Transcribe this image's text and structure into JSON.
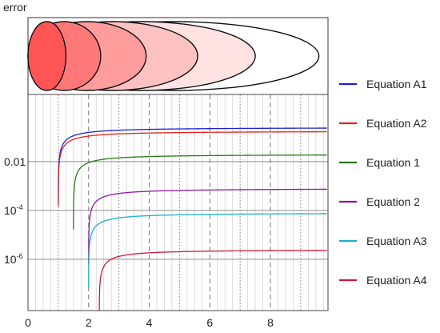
{
  "chart_data": {
    "type": "line",
    "top_panel_label": "error",
    "xlim": [
      0,
      9.9
    ],
    "ylim_log10": [
      -8.1,
      0.75
    ],
    "x_ticks": [
      {
        "value": 0,
        "label": "0"
      },
      {
        "value": 2,
        "label": "2"
      },
      {
        "value": 4,
        "label": "4"
      },
      {
        "value": 6,
        "label": "6"
      },
      {
        "value": 8,
        "label": "8"
      }
    ],
    "y_ticks": [
      {
        "log10": -2,
        "base": "0.01",
        "exp": ""
      },
      {
        "log10": -4,
        "base": "10",
        "exp": "-4"
      },
      {
        "log10": -6,
        "base": "10",
        "exp": "-6"
      }
    ],
    "grid": "minor vertical lines every 0.25, dotted at integers, dashed at even integers; solid horizontal lines at y ticks",
    "legend_placement": "right",
    "series": [
      {
        "name": "Equation A1",
        "color": "#1f1fd6",
        "x_start": 1.0,
        "log10_limit": -0.6,
        "onset_log10": -0.12
      },
      {
        "name": "Equation A2",
        "color": "#e02020",
        "x_start": 1.0,
        "log10_limit": -0.75,
        "onset_log10": -0.12
      },
      {
        "name": "Equation 1",
        "color": "#2a7a1a",
        "x_start": 1.5,
        "log10_limit": -1.7,
        "onset_log10": -0.18
      },
      {
        "name": "Equation 2",
        "color": "#8e18a8",
        "x_start": 2.0,
        "log10_limit": -3.1,
        "onset_log10": -0.25
      },
      {
        "name": "Equation A3",
        "color": "#1ab0cf",
        "x_start": 2.0,
        "log10_limit": -4.1,
        "onset_log10": -0.3
      },
      {
        "name": "Equation A4",
        "color": "#cf1838",
        "x_start": 2.35,
        "log10_limit": -5.6,
        "onset_log10": -0.35
      }
    ],
    "ellipses": [
      {
        "semi_axis_x": 9.6,
        "fill": "#ffffff"
      },
      {
        "semi_axis_x": 7.5,
        "fill": "#ffe3e3"
      },
      {
        "semi_axis_x": 5.6,
        "fill": "#ffc2c2"
      },
      {
        "semi_axis_x": 3.9,
        "fill": "#ff9d9d"
      },
      {
        "semi_axis_x": 2.4,
        "fill": "#ff7878"
      },
      {
        "semi_axis_x": 1.25,
        "fill": "#ff5555"
      }
    ]
  }
}
